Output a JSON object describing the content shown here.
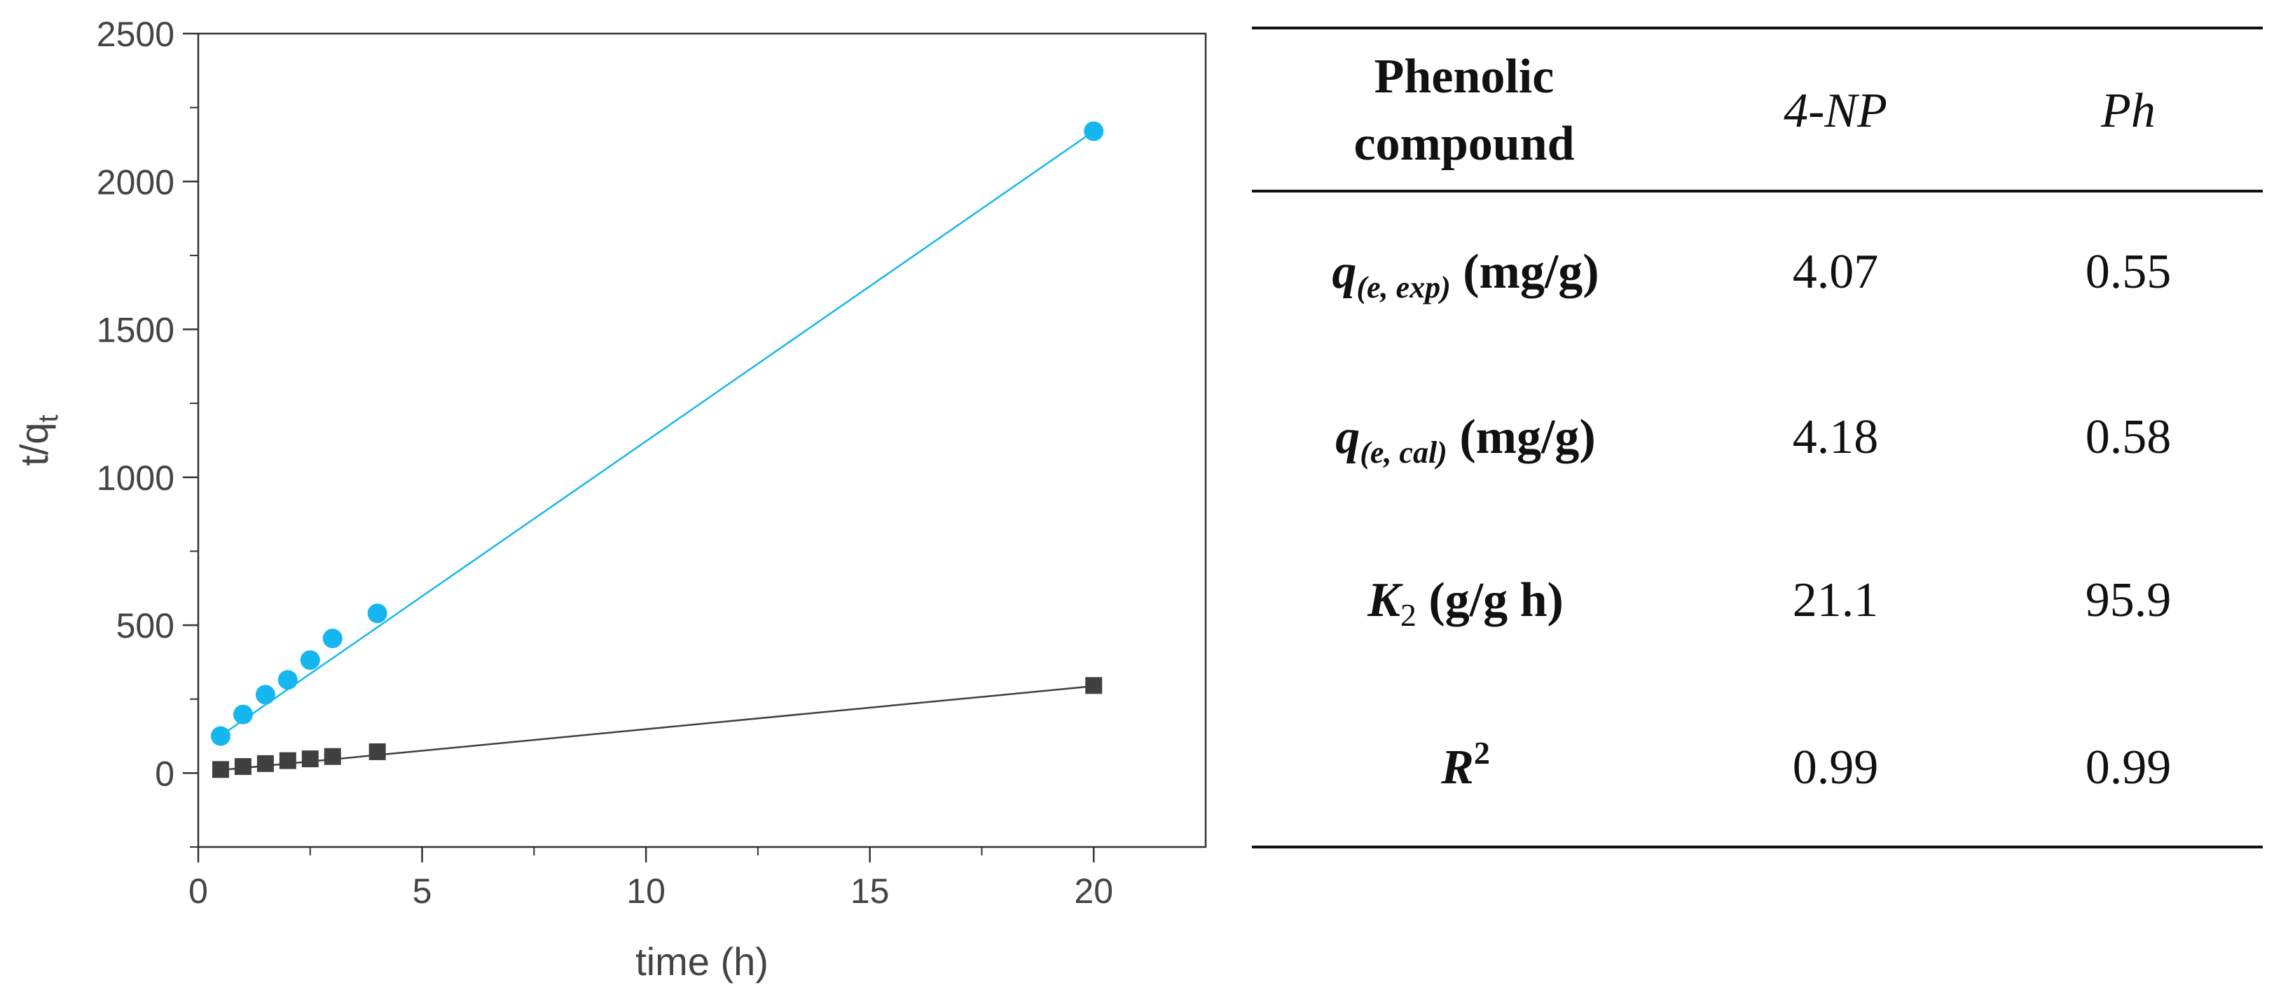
{
  "chart_data": {
    "type": "scatter",
    "title": "",
    "xlabel": "time (h)",
    "ylabel_main": "t/q",
    "ylabel_sub": "t",
    "xlim": [
      0,
      22.5
    ],
    "ylim": [
      -250,
      2500
    ],
    "xticks": [
      0,
      5,
      10,
      15,
      20
    ],
    "yticks": [
      0,
      500,
      1000,
      1500,
      2000,
      2500
    ],
    "grid": false,
    "legend": "none",
    "series": [
      {
        "name": "4-NP",
        "marker": "square",
        "color": "#404040",
        "x": [
          0.5,
          1,
          1.5,
          2,
          2.5,
          3,
          4,
          20
        ],
        "y": [
          12,
          22,
          32,
          42,
          48,
          56,
          72,
          296
        ],
        "fit": [
          [
            0.5,
            10
          ],
          [
            20,
            294
          ]
        ]
      },
      {
        "name": "Ph",
        "marker": "circle",
        "color": "#16b7f0",
        "x": [
          0.5,
          1,
          1.5,
          2,
          2.5,
          3,
          4,
          20
        ],
        "y": [
          125,
          198,
          265,
          315,
          382,
          455,
          540,
          2170
        ],
        "fit": [
          [
            0.5,
            126
          ],
          [
            20,
            2170
          ]
        ]
      }
    ]
  },
  "table": {
    "header": {
      "col0_line1": "Phenolic",
      "col0_line2": "compound",
      "col1": "4-NP",
      "col2": "Ph"
    },
    "rows": [
      {
        "sym": "q",
        "sub": "(e, exp)",
        "unit": " (mg/g)",
        "v1": "4.07",
        "v2": "0.55"
      },
      {
        "sym": "q",
        "sub": "(e, cal)",
        "unit": " (mg/g)",
        "v1": "4.18",
        "v2": "0.58"
      },
      {
        "sym": "K",
        "sub": "2",
        "unit": " (g/g h)",
        "v1": "21.1",
        "v2": "95.9"
      },
      {
        "sym": "R",
        "sup": "2",
        "v1": "0.99",
        "v2": "0.99"
      }
    ]
  }
}
